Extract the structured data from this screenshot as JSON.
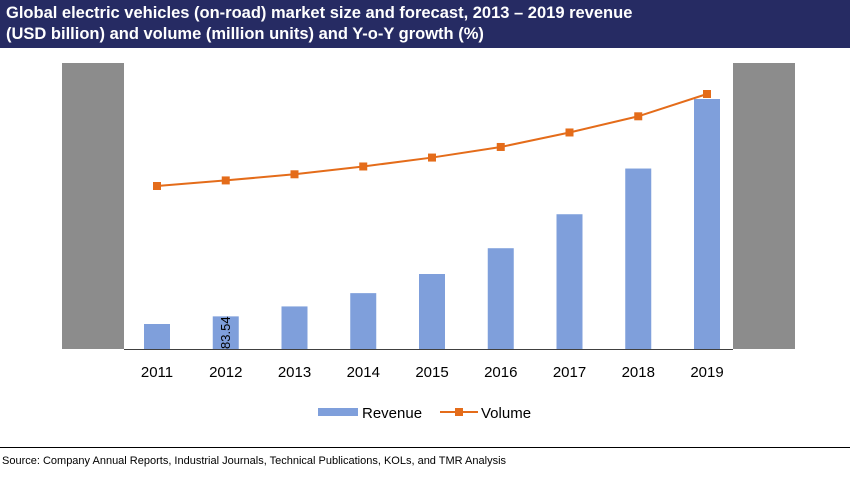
{
  "title": {
    "line1": "Global electric vehicles (on-road) market size and forecast, 2013 – 2019 revenue",
    "line2": "(USD billion) and volume (million units) and Y-o-Y growth (%)"
  },
  "source": "Source: Company Annual Reports, Industrial Journals, Technical Publications, KOLs, and TMR Analysis",
  "colors": {
    "title_bg": "#262b63",
    "revenue": "#7f9fdb",
    "volume": "#e46c1a",
    "side_panel": "#8c8c8c"
  },
  "chart_data": {
    "type": "bar",
    "categories": [
      "2011",
      "2012",
      "2013",
      "2014",
      "2015",
      "2016",
      "2017",
      "2018",
      "2019"
    ],
    "series": [
      {
        "name": "Revenue",
        "type": "bar",
        "values": [
          64,
          83.54,
          109,
          143,
          192,
          258,
          345,
          462,
          640
        ]
      },
      {
        "name": "Volume",
        "type": "line",
        "values": [
          100,
          120,
          142,
          170,
          202,
          240,
          292,
          350,
          430
        ]
      }
    ],
    "data_labels": [
      {
        "series": "Revenue",
        "category": "2012",
        "text": "83.54"
      }
    ],
    "legend": {
      "position": "bottom",
      "entries": [
        "Revenue",
        "Volume"
      ]
    },
    "grid": false
  }
}
